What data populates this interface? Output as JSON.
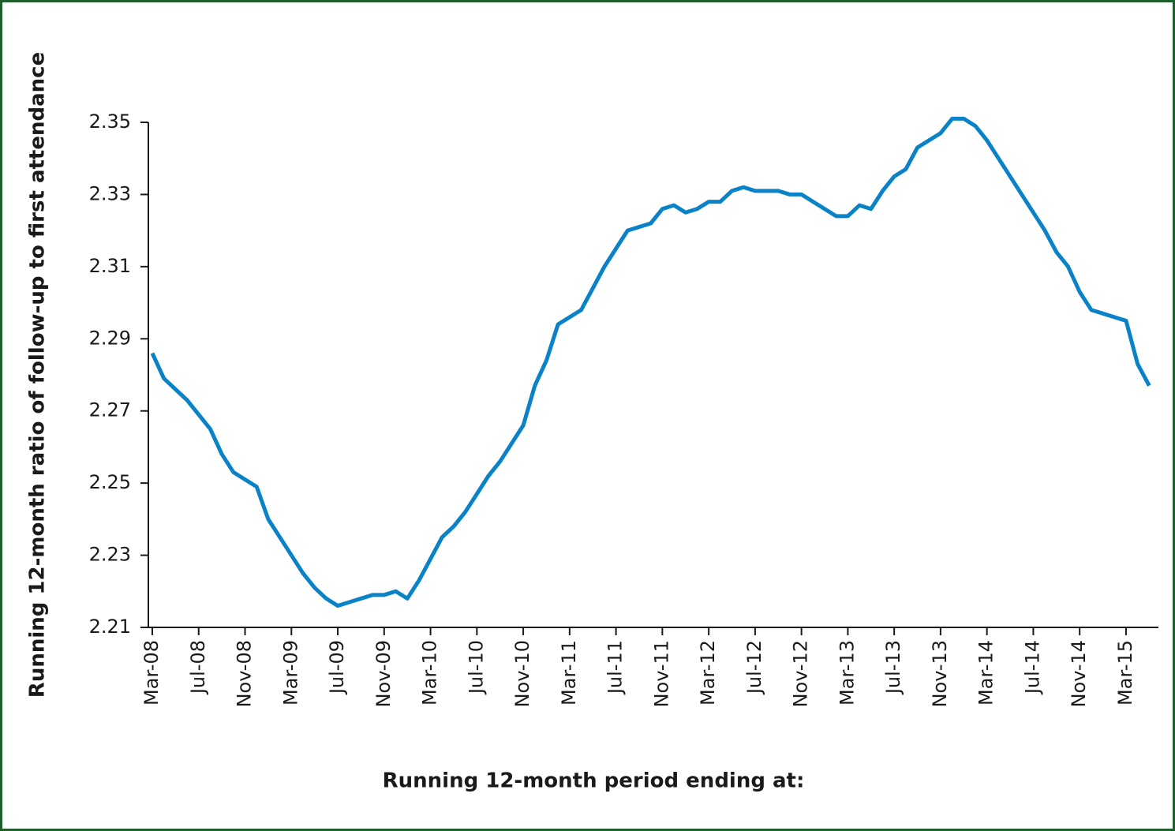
{
  "chart_data": {
    "type": "line",
    "y_label": "Running 12-month ratio of follow-up to first attendance",
    "x_label": "Running 12-month period ending at:",
    "categories": [
      "Mar-08",
      null,
      null,
      null,
      "Jul-08",
      null,
      null,
      null,
      "Nov-08",
      null,
      null,
      null,
      "Mar-09",
      null,
      null,
      null,
      "Jul-09",
      null,
      null,
      null,
      "Nov-09",
      null,
      null,
      null,
      "Mar-10",
      null,
      null,
      null,
      "Jul-10",
      null,
      null,
      null,
      "Nov-10",
      null,
      null,
      null,
      "Mar-11",
      null,
      null,
      null,
      "Jul-11",
      null,
      null,
      null,
      "Nov-11",
      null,
      null,
      null,
      "Mar-12",
      null,
      null,
      null,
      "Jul-12",
      null,
      null,
      null,
      "Nov-12",
      null,
      null,
      null,
      "Mar-13",
      null,
      null,
      null,
      "Jul-13",
      null,
      null,
      null,
      "Nov-13",
      null,
      null,
      null,
      "Mar-14",
      null,
      null,
      null,
      "Jul-14",
      null,
      null,
      null,
      "Nov-14",
      null,
      null,
      null,
      "Mar-15",
      null,
      null
    ],
    "series": [
      {
        "name": "Ratio",
        "color": "#0a82c8",
        "values": [
          2.286,
          2.279,
          2.276,
          2.273,
          2.269,
          2.265,
          2.258,
          2.253,
          2.251,
          2.249,
          2.24,
          2.235,
          2.23,
          2.225,
          2.221,
          2.218,
          2.216,
          2.217,
          2.218,
          2.219,
          2.219,
          2.22,
          2.218,
          2.223,
          2.229,
          2.235,
          2.238,
          2.242,
          2.247,
          2.252,
          2.256,
          2.261,
          2.266,
          2.277,
          2.284,
          2.294,
          2.296,
          2.298,
          2.304,
          2.31,
          2.315,
          2.32,
          2.321,
          2.322,
          2.326,
          2.327,
          2.325,
          2.326,
          2.328,
          2.328,
          2.331,
          2.332,
          2.331,
          2.331,
          2.331,
          2.33,
          2.33,
          2.328,
          2.326,
          2.324,
          2.324,
          2.327,
          2.326,
          2.331,
          2.335,
          2.337,
          2.343,
          2.345,
          2.347,
          2.351,
          2.351,
          2.349,
          2.345,
          2.34,
          2.335,
          2.33,
          2.325,
          2.32,
          2.314,
          2.31,
          2.303,
          2.298,
          2.297,
          2.296,
          2.295,
          2.283,
          2.277
        ]
      }
    ],
    "ylim": [
      2.21,
      2.35
    ],
    "yticks": [
      2.21,
      2.23,
      2.25,
      2.27,
      2.29,
      2.31,
      2.33,
      2.35
    ]
  }
}
